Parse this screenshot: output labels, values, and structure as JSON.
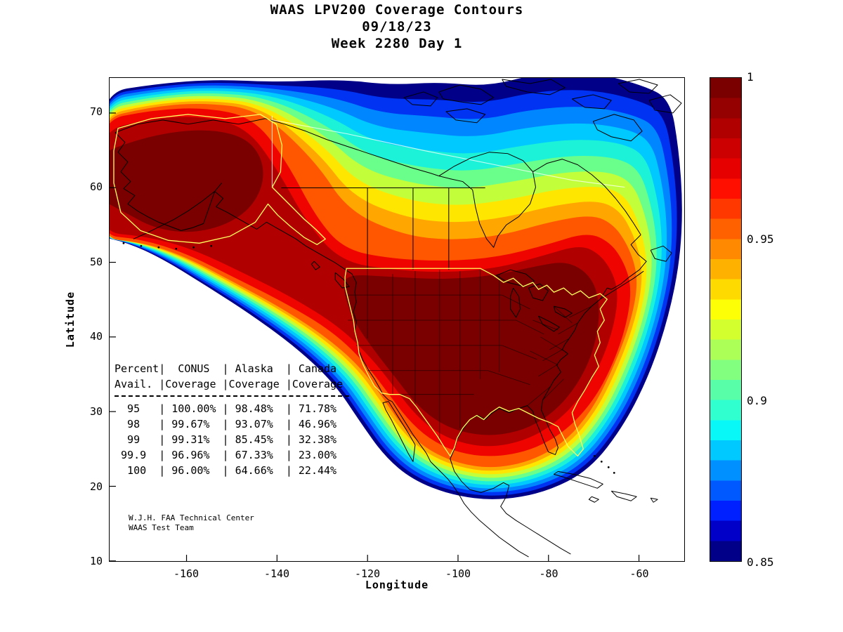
{
  "chart_data": {
    "type": "heatmap",
    "title": "WAAS LPV200 Coverage Contours",
    "subtitle": "09/18/23",
    "subtitle2": "Week 2280 Day 1",
    "xlabel": "Longitude",
    "ylabel": "Latitude",
    "xlim": [
      -177,
      -50
    ],
    "ylim": [
      10,
      74.7
    ],
    "xticks": [
      "-160",
      "-140",
      "-120",
      "-100",
      "-80",
      "-60"
    ],
    "yticks": [
      "70",
      "60",
      "50",
      "40",
      "30",
      "20",
      "10"
    ],
    "grid": false,
    "colorbar": {
      "min": 0.85,
      "max": 1,
      "ticks": [
        "1",
        "0.95",
        "0.9",
        "0.85"
      ],
      "colormap": "jet",
      "colors": [
        "#7a0000",
        "#950000",
        "#b00000",
        "#cc0000",
        "#e70000",
        "#ff0f00",
        "#ff3800",
        "#ff6000",
        "#ff8900",
        "#ffb100",
        "#ffda00",
        "#fdff06",
        "#d4ff2e",
        "#abff57",
        "#82ff7f",
        "#59ffa8",
        "#30ffd0",
        "#08f8f8",
        "#00c9ff",
        "#0090ff",
        "#0058ff",
        "#0020ff",
        "#0000c9",
        "#000089"
      ]
    },
    "map_contour_colors": [
      "#000089",
      "#0033f2",
      "#0086ff",
      "#00c9ff",
      "#1cf2d8",
      "#6aff8a",
      "#c2ff3a",
      "#ffe600",
      "#ffa600",
      "#ff5600",
      "#ef0400",
      "#b00000",
      "#7a0000"
    ],
    "coastline_color": "#000000",
    "region_outline_color": "#ffff5e",
    "coverage_table": {
      "col_headers_line1": [
        "Percent",
        "CONUS",
        "Alaska",
        "Canada"
      ],
      "col_headers_line2": [
        "Avail.",
        "Coverage",
        "Coverage",
        "Coverage"
      ],
      "rows": [
        [
          "95",
          "100.00%",
          "98.48%",
          "71.78%"
        ],
        [
          "98",
          "99.67%",
          "93.07%",
          "46.96%"
        ],
        [
          "99",
          "99.31%",
          "85.45%",
          "32.38%"
        ],
        [
          "99.9",
          "96.96%",
          "67.33%",
          "23.00%"
        ],
        [
          "100",
          "96.00%",
          "64.66%",
          "22.44%"
        ]
      ]
    },
    "credit_line1": "W.J.H. FAA Technical Center",
    "credit_line2": "WAAS Test Team"
  }
}
